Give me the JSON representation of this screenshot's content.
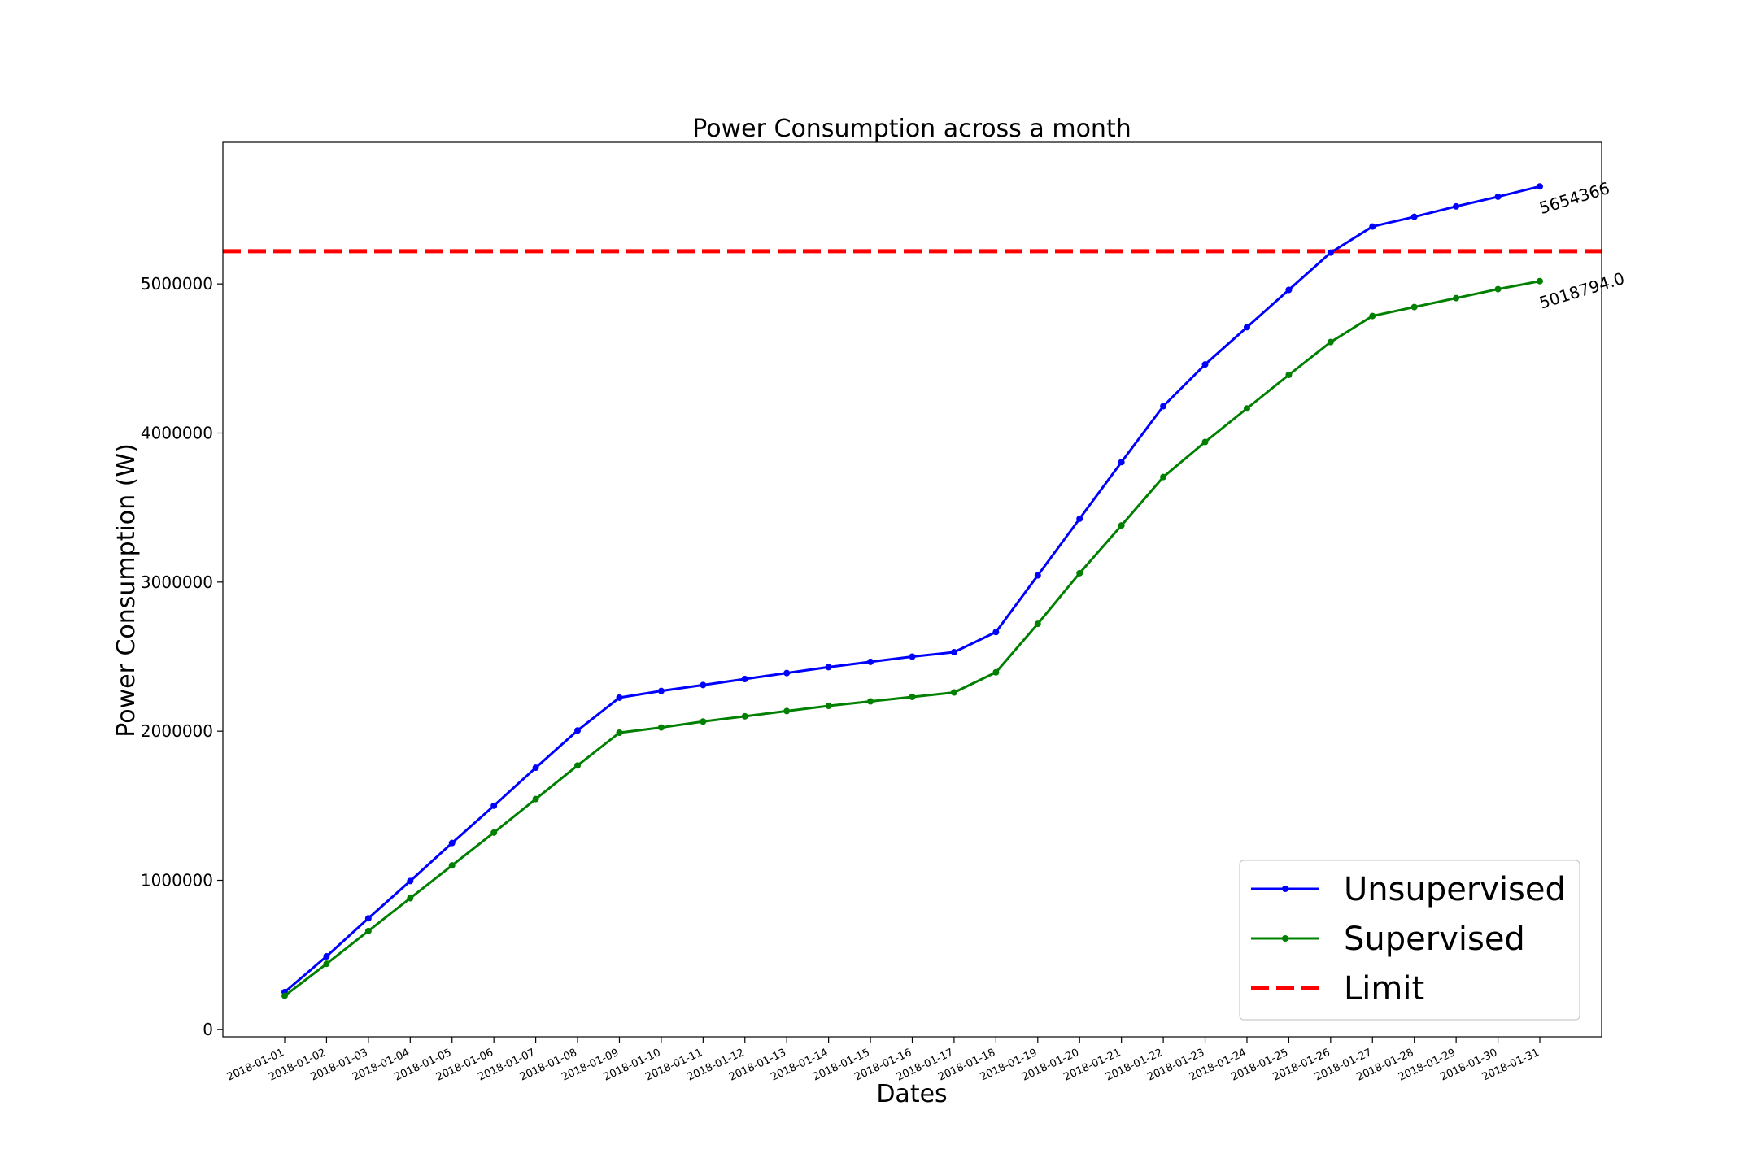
{
  "chart_data": {
    "type": "line",
    "title": "Power Consumption across a month",
    "xlabel": "Dates",
    "ylabel": "Power Consumption (W)",
    "ylim": [
      -50000,
      5950000
    ],
    "yticks": [
      0,
      1000000,
      2000000,
      3000000,
      4000000,
      5000000
    ],
    "ytick_labels": [
      "0",
      "1000000",
      "2000000",
      "3000000",
      "4000000",
      "5000000"
    ],
    "grid": false,
    "legend_position": "lower right",
    "x": [
      "2018-01-01",
      "2018-01-02",
      "2018-01-03",
      "2018-01-04",
      "2018-01-05",
      "2018-01-06",
      "2018-01-07",
      "2018-01-08",
      "2018-01-09",
      "2018-01-10",
      "2018-01-11",
      "2018-01-12",
      "2018-01-13",
      "2018-01-14",
      "2018-01-15",
      "2018-01-16",
      "2018-01-17",
      "2018-01-18",
      "2018-01-19",
      "2018-01-20",
      "2018-01-21",
      "2018-01-22",
      "2018-01-23",
      "2018-01-24",
      "2018-01-25",
      "2018-01-26",
      "2018-01-27",
      "2018-01-28",
      "2018-01-29",
      "2018-01-30",
      "2018-01-31"
    ],
    "series": [
      {
        "name": "Unsupervised",
        "color": "#0000ff",
        "values": [
          250000,
          490000,
          745000,
          995000,
          1250000,
          1500000,
          1755000,
          2005000,
          2225000,
          2270000,
          2310000,
          2350000,
          2390000,
          2430000,
          2465000,
          2500000,
          2530000,
          2665000,
          3045000,
          3425000,
          3805000,
          4180000,
          4460000,
          4710000,
          4960000,
          5210000,
          5385000,
          5450000,
          5520000,
          5585000,
          5654366
        ]
      },
      {
        "name": "Supervised",
        "color": "#008000",
        "values": [
          225000,
          440000,
          660000,
          880000,
          1100000,
          1320000,
          1545000,
          1770000,
          1990000,
          2025000,
          2065000,
          2100000,
          2135000,
          2170000,
          2200000,
          2230000,
          2260000,
          2395000,
          2720000,
          3060000,
          3380000,
          3705000,
          3940000,
          4165000,
          4390000,
          4610000,
          4785000,
          4845000,
          4905000,
          4965000,
          5018794.0
        ]
      }
    ],
    "limit": {
      "name": "Limit",
      "value": 5220000,
      "color": "#ff0000"
    },
    "annotations": [
      {
        "series": "Unsupervised",
        "text": "5654366"
      },
      {
        "series": "Supervised",
        "text": "5018794.0"
      }
    ]
  }
}
